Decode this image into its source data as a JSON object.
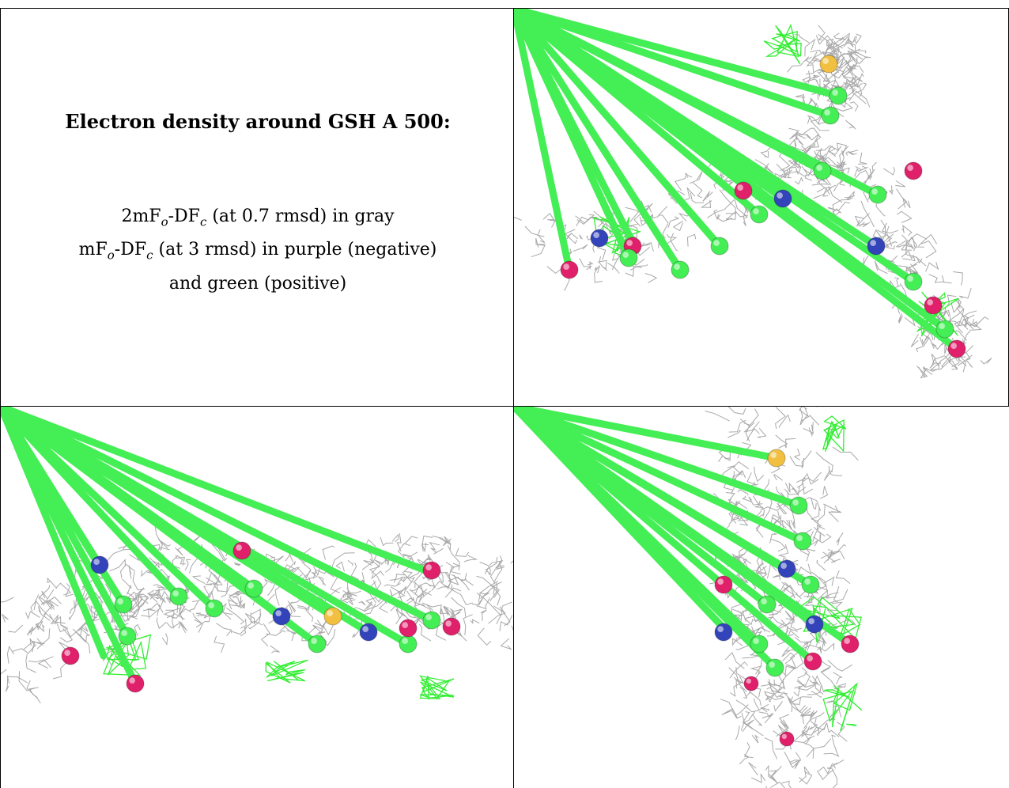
{
  "title": "Electron density around GSH A 500:",
  "legend": {
    "line1": {
      "pre": "2mF",
      "o": "o",
      "mid": "-DF",
      "c": "c",
      "post": " (at 0.7 rmsd) in gray"
    },
    "line2": {
      "pre": "mF",
      "o": "o",
      "mid": "-DF",
      "c": "c",
      "post": " (at 3 rmsd) in purple (negative)"
    },
    "line3": "and green (positive)"
  },
  "colors": {
    "mesh_2fofc": "#9a9a9a",
    "mesh_positive": "#33ee33",
    "carbon": "#44ee55",
    "nitrogen": "#3344bb",
    "oxygen": "#e0206a",
    "sulfur": "#f2c040"
  },
  "views": [
    "view-1",
    "view-2",
    "view-3"
  ]
}
